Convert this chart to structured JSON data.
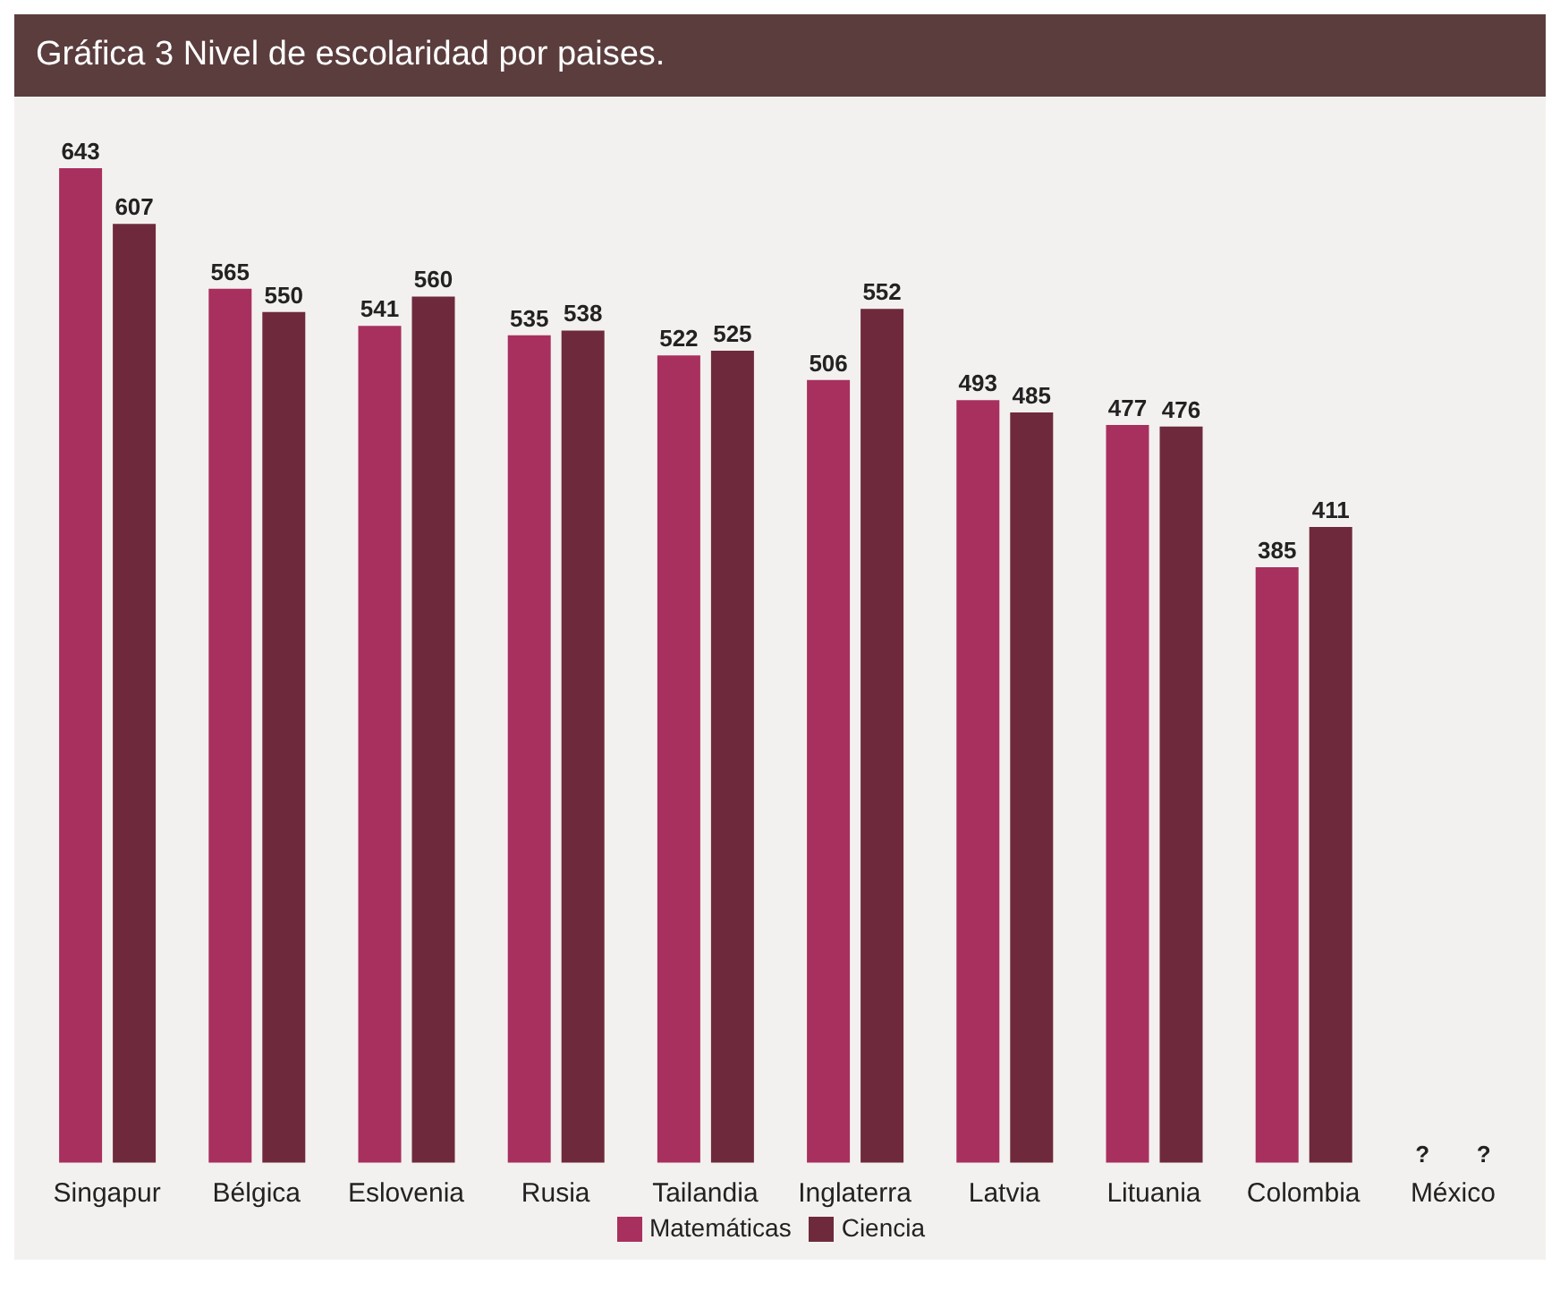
{
  "chart_data": {
    "type": "bar",
    "title": "Gráfica 3  Nivel de escolaridad por paises.",
    "categories": [
      "Singapur",
      "Bélgica",
      "Eslovenia",
      "Rusia",
      "Tailandia",
      "Inglaterra",
      "Latvia",
      "Lituania",
      "Colombia",
      "México"
    ],
    "series": [
      {
        "name": "Matemáticas",
        "color": "#a8305e",
        "values": [
          643,
          565,
          541,
          535,
          522,
          506,
          493,
          477,
          385,
          null
        ],
        "value_labels": [
          "643",
          "565",
          "541",
          "535",
          "522",
          "506",
          "493",
          "477",
          "385",
          "?"
        ]
      },
      {
        "name": "Ciencia",
        "color": "#6e2a3c",
        "values": [
          607,
          550,
          560,
          538,
          525,
          552,
          485,
          476,
          411,
          null
        ],
        "value_labels": [
          "607",
          "550",
          "560",
          "538",
          "525",
          "552",
          "485",
          "476",
          "411",
          "?"
        ]
      }
    ],
    "legend": "bottom"
  }
}
